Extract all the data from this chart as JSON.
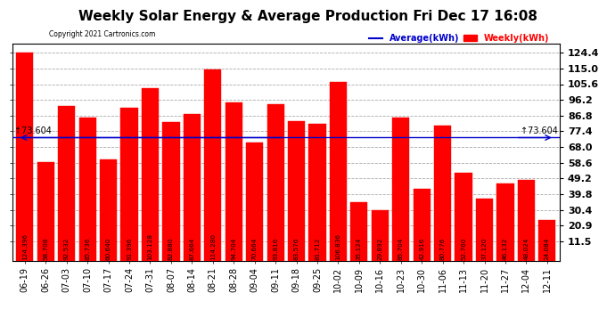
{
  "title": "Weekly Solar Energy & Average Production Fri Dec 17 16:08",
  "copyright": "Copyright 2021 Cartronics.com",
  "legend_avg": "Average(kWh)",
  "legend_weekly": "Weekly(kWh)",
  "average_value": 73.604,
  "categories": [
    "06-19",
    "06-26",
    "07-03",
    "07-10",
    "07-17",
    "07-24",
    "07-31",
    "08-07",
    "08-14",
    "08-21",
    "08-28",
    "09-04",
    "09-11",
    "09-18",
    "09-25",
    "10-02",
    "10-09",
    "10-16",
    "10-23",
    "10-30",
    "11-06",
    "11-13",
    "11-20",
    "11-27",
    "12-04",
    "12-11"
  ],
  "values": [
    124.396,
    58.708,
    92.532,
    85.736,
    60.64,
    91.396,
    103.128,
    82.88,
    87.664,
    114.28,
    94.704,
    70.664,
    93.816,
    83.576,
    81.712,
    106.836,
    35.124,
    29.892,
    85.704,
    42.916,
    80.776,
    52.76,
    37.12,
    46.132,
    48.024,
    24.084
  ],
  "bar_color": "#ff0000",
  "avg_line_color": "#0000cc",
  "background_color": "#ffffff",
  "grid_color": "#aaaaaa",
  "title_color": "#000000",
  "yticks": [
    11.5,
    20.9,
    30.4,
    39.8,
    49.2,
    58.6,
    68.0,
    77.4,
    86.8,
    96.2,
    105.6,
    115.0,
    124.4
  ],
  "ylim_min": 0,
  "ylim_max": 130,
  "title_fontsize": 11,
  "tick_fontsize": 7,
  "bar_label_fontsize": 5.2,
  "ytick_fontsize": 8
}
